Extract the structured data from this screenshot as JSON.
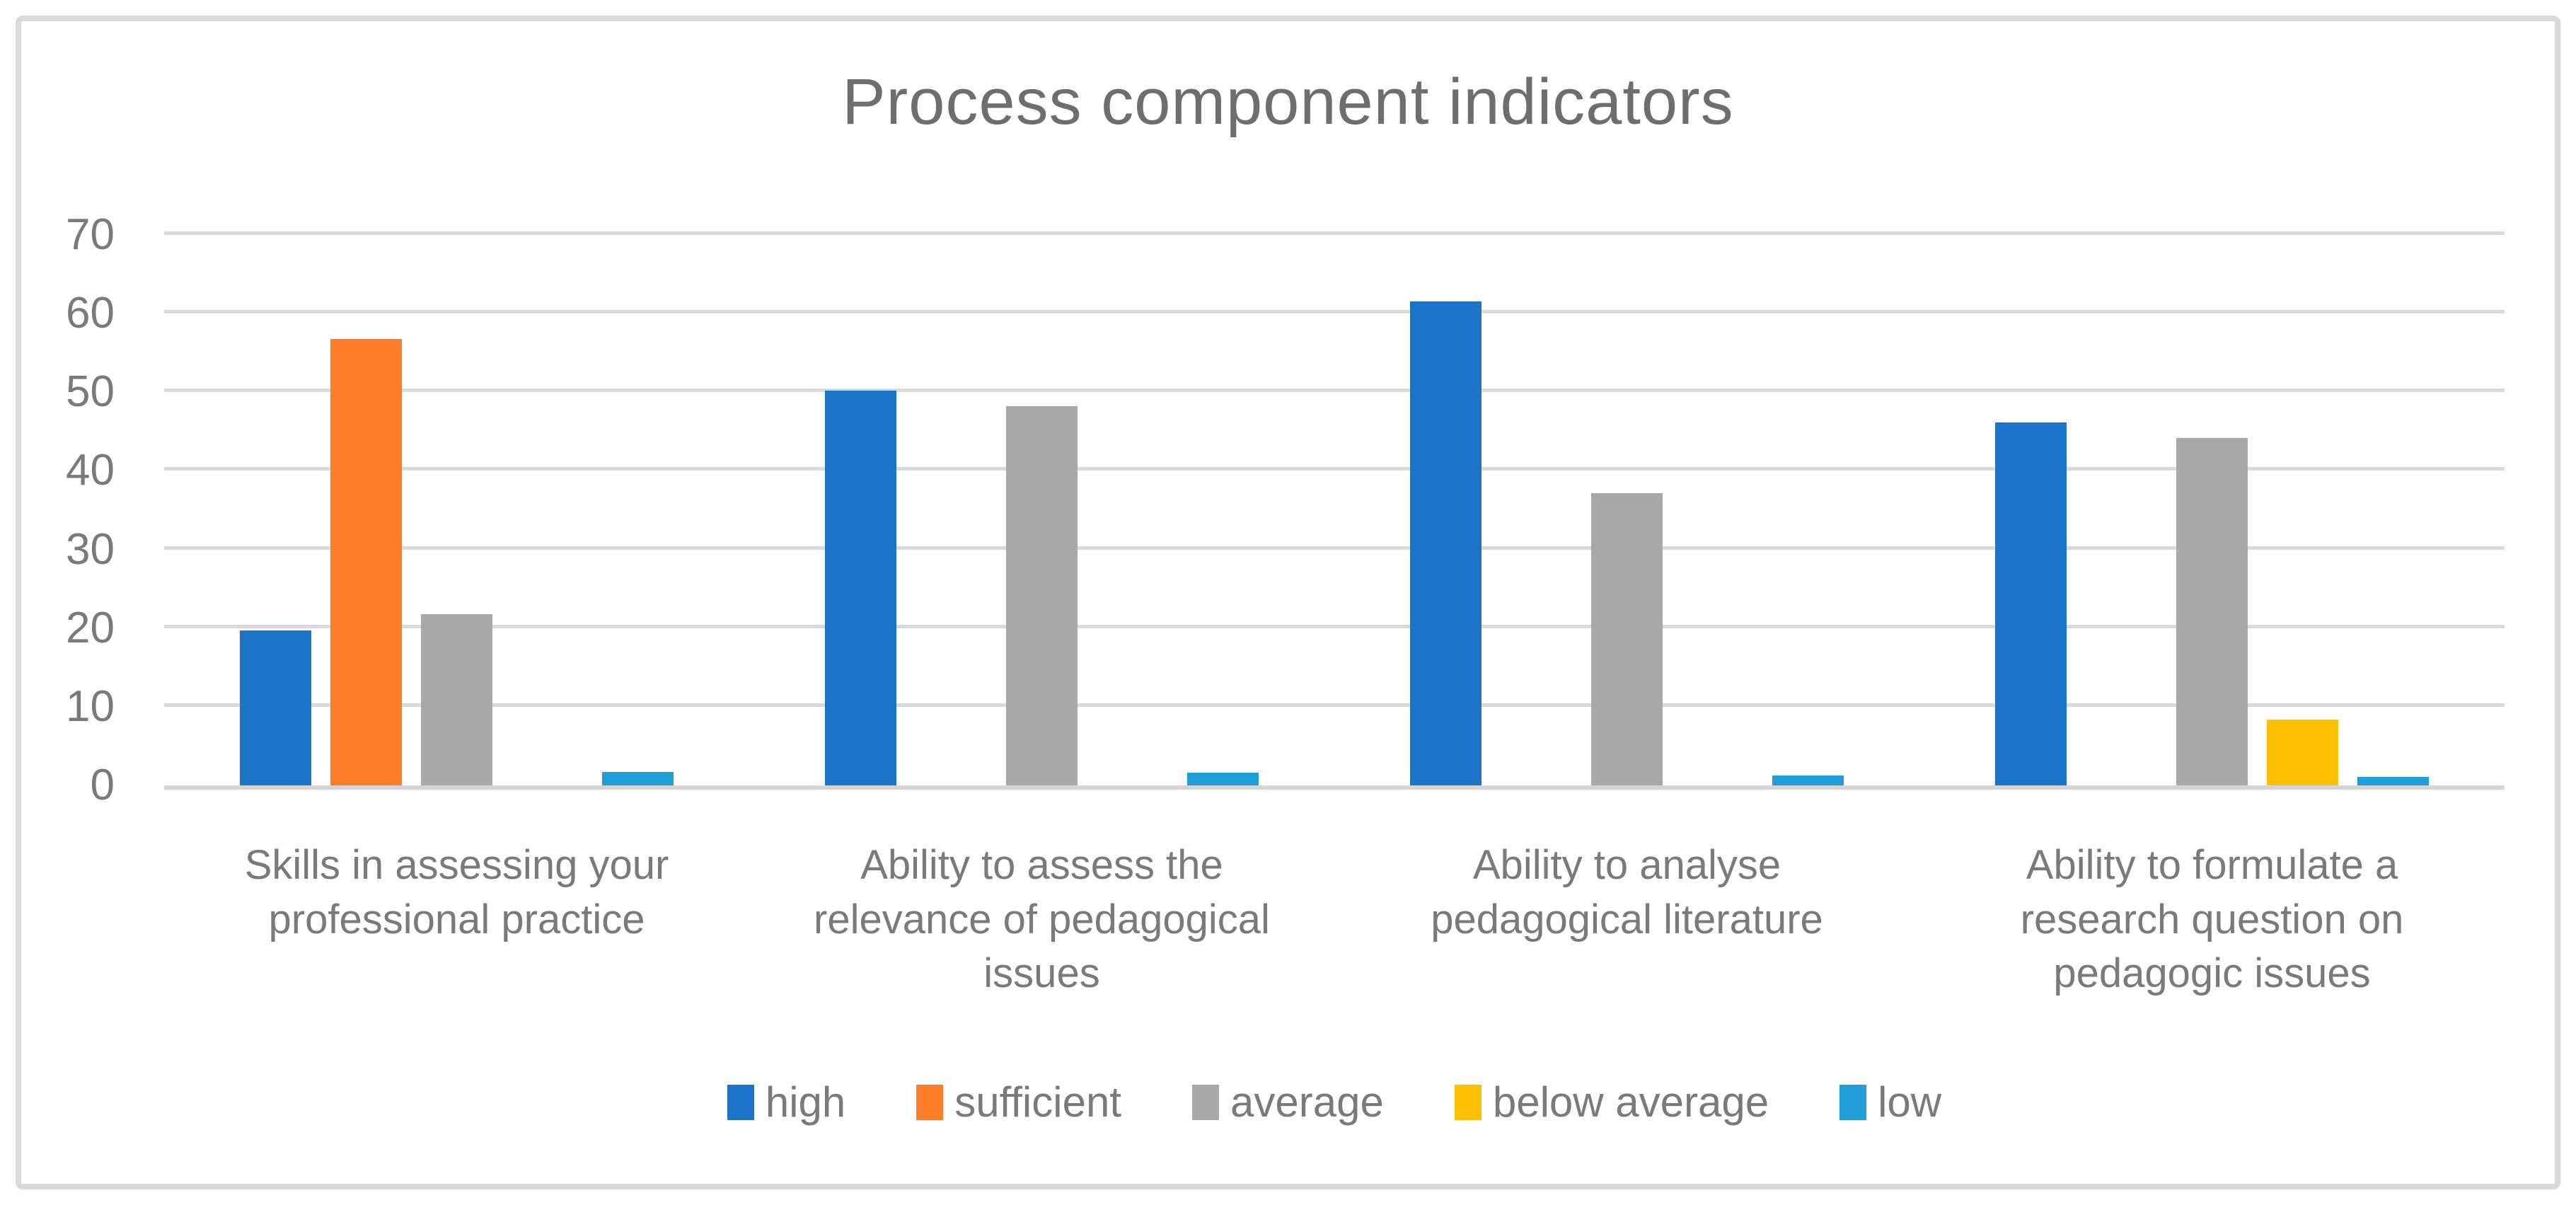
{
  "title": "Process component indicators",
  "colors": {
    "title_text": "#6E6E6E",
    "axis_text": "#7A7A7A",
    "gridline": "#DADADA",
    "axis_line": "#D6D6D6",
    "frame_border": "#D9D9D9",
    "background": "#FFFFFF"
  },
  "chart_data": {
    "type": "bar",
    "title": "Process component indicators",
    "categories": [
      "Skills in assessing your\nprofessional practice",
      "Ability to assess the\nrelevance of pedagogical\nissues",
      "Ability to analyse\npedagogical literature",
      "Ability to formulate a\nresearch question on\npedagogic issues"
    ],
    "series": [
      {
        "name": "high",
        "color": "#1C74C9",
        "values": [
          19.7,
          50.2,
          61.5,
          46.2
        ]
      },
      {
        "name": "sufficient",
        "color": "#FD7E26",
        "values": [
          56.8,
          0,
          0,
          0
        ]
      },
      {
        "name": "average",
        "color": "#A8A8A8",
        "values": [
          21.8,
          48.2,
          37.2,
          44.2
        ]
      },
      {
        "name": "below average",
        "color": "#FFC000",
        "values": [
          0,
          0,
          0,
          8.4
        ]
      },
      {
        "name": "low",
        "color": "#219DD7",
        "values": [
          1.7,
          1.6,
          1.3,
          1.1
        ]
      }
    ],
    "xlabel": "",
    "ylabel": "",
    "ylim": [
      0,
      70
    ],
    "yticks": [
      0,
      10,
      20,
      30,
      40,
      50,
      60,
      70
    ],
    "grid": true,
    "legend_position": "bottom"
  }
}
